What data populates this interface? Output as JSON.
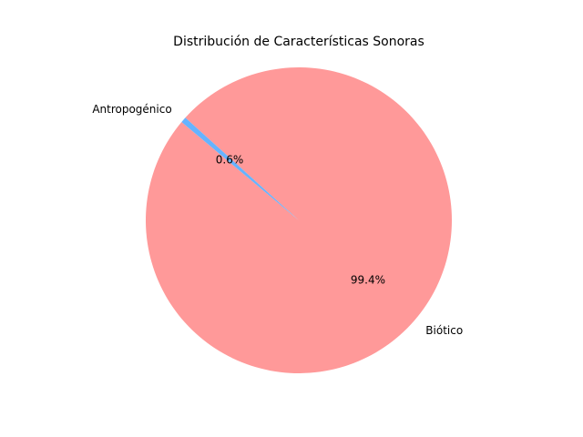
{
  "chart_data": {
    "type": "pie",
    "title": "Distribución de Características Sonoras",
    "slices": [
      {
        "label": "Biótico",
        "value": 99.4,
        "pct_label": "99.4%",
        "color": "#ff9999"
      },
      {
        "label": "Antropogénico",
        "value": 0.6,
        "pct_label": "0.6%",
        "color": "#66b3ff"
      }
    ],
    "start_angle_deg": 140,
    "direction": "counterclockwise",
    "legend": "none"
  }
}
